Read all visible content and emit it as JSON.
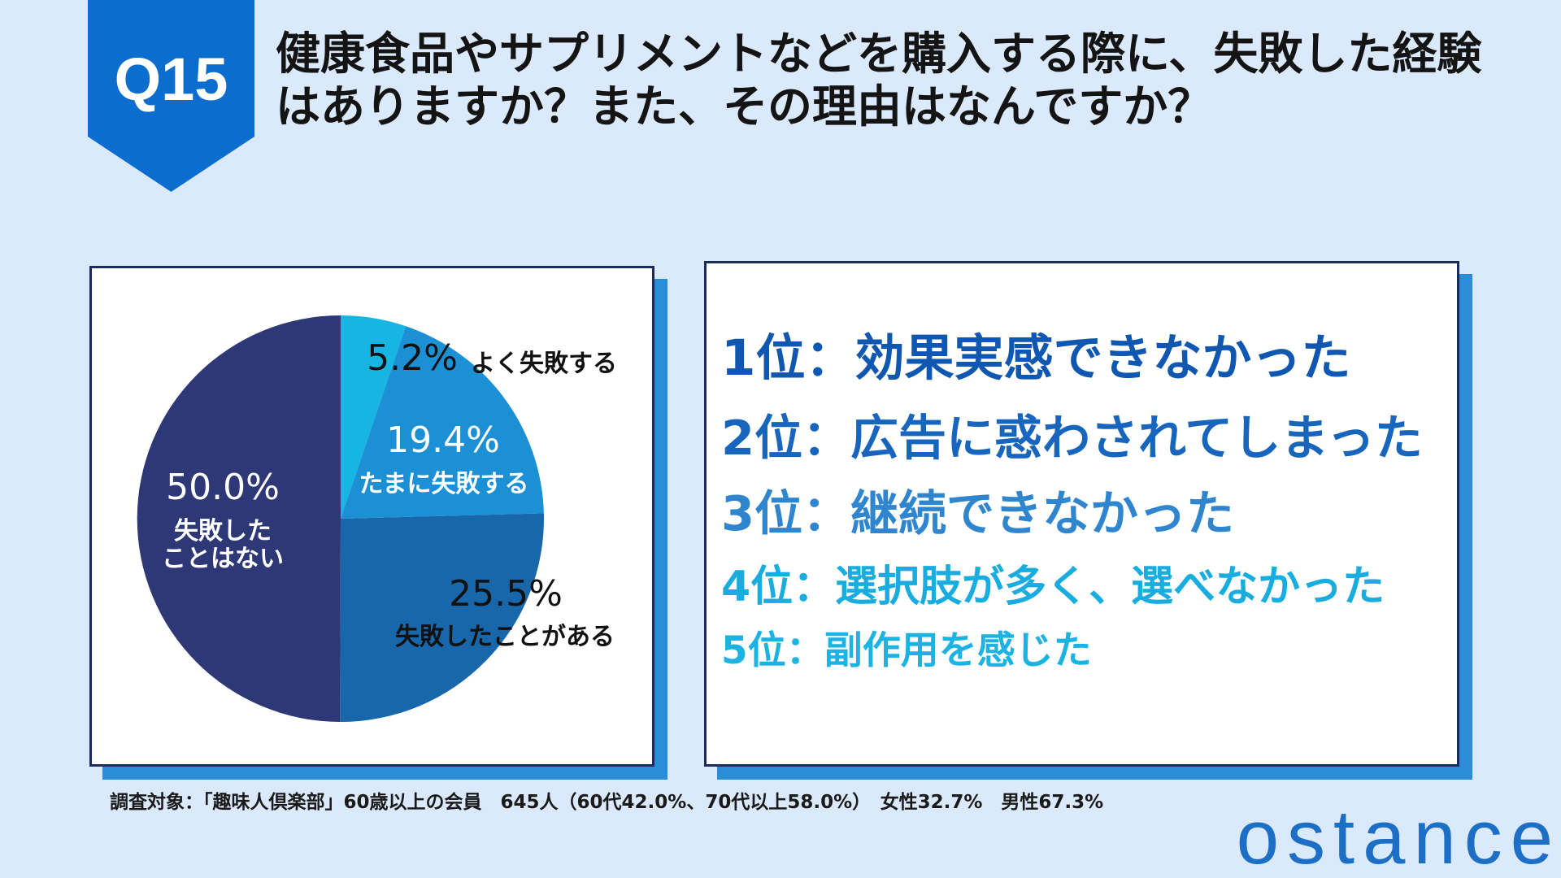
{
  "badge": {
    "label": "Q15"
  },
  "title": {
    "line1": "健康食品やサプリメントなどを購入する際に、失敗した経験",
    "line2": "はありますか？また、その理由はなんですか？"
  },
  "theme": {
    "accent": "#0b6dcd"
  },
  "chart_data": {
    "type": "pie",
    "unit": "%",
    "slices": [
      {
        "label_lines": [
          "よく失敗する"
        ],
        "value": 5.2,
        "color": "#17b6e2",
        "label_color": "#111111"
      },
      {
        "label_lines": [
          "たまに失敗する"
        ],
        "value": 19.4,
        "color": "#1c90d5",
        "label_color": "#ffffff"
      },
      {
        "label_lines": [
          "失敗したことがある"
        ],
        "value": 25.5,
        "color": "#1967ab",
        "label_color": "#111111"
      },
      {
        "label_lines": [
          "失敗した",
          "ことはない"
        ],
        "value": 50.0,
        "color": "#2e3877",
        "label_color": "#ffffff"
      }
    ]
  },
  "ranking": {
    "items": [
      {
        "label": "1位：効果実感できなかった",
        "color": "#0f57b0"
      },
      {
        "label": "2位：広告に惑わされてしまった",
        "color": "#1765bd"
      },
      {
        "label": "3位：継続できなかった",
        "color": "#2f86cf"
      },
      {
        "label": "4位：選択肢が多く、選べなかった",
        "color": "#19addf"
      },
      {
        "label": "5位：副作用を感じた",
        "color": "#1cb3e3"
      }
    ]
  },
  "survey_note": "調査対象：「趣味人倶楽部」60歳以上の会員　645人（60代42.0%、70代以上58.0%）　女性32.7%　男性67.3%",
  "logo": {
    "text": "ostance"
  }
}
